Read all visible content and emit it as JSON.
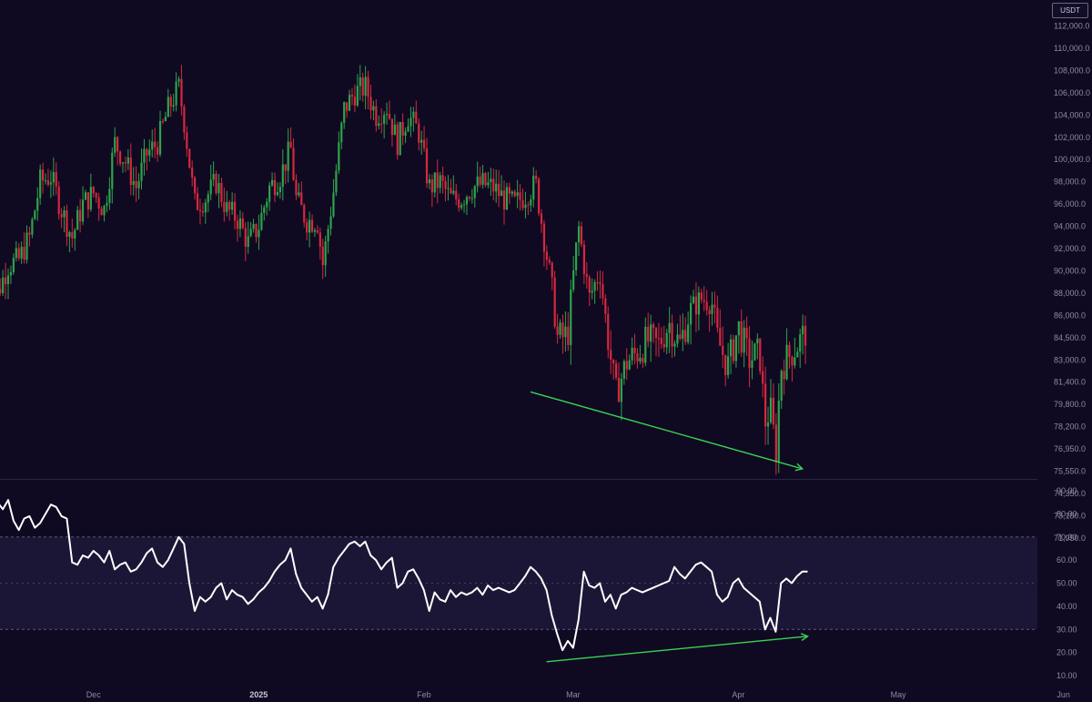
{
  "currency_badge": "USDT",
  "colors": {
    "background": "#0f0a22",
    "bullish": "#2ea34a",
    "bearish": "#d6283e",
    "rsi_line": "#ffffff",
    "rsi_band": "#1c1636",
    "trendline": "#39d353",
    "axis_text": "#8e8aa3"
  },
  "chart_data": [
    {
      "type": "candlestick",
      "title": "",
      "price_axis_labels": [
        "112,000.0",
        "110,000.0",
        "108,000.0",
        "106,000.0",
        "104,000.0",
        "102,000.0",
        "100,000.0",
        "98,000.0",
        "96,000.0",
        "94,000.0",
        "92,000.0",
        "90,000.0",
        "88,000.0",
        "86,000.0",
        "84,500.0",
        "83,000.0",
        "81,400.0",
        "79,800.0",
        "78,200.0",
        "76,950.0",
        "75,550.0",
        "74,350.0",
        "73,150.0",
        "71,950.0"
      ],
      "date_axis_labels": [
        {
          "label": "Dec",
          "bold": false
        },
        {
          "label": "2025",
          "bold": true
        },
        {
          "label": "Feb",
          "bold": false
        },
        {
          "label": "Mar",
          "bold": false
        },
        {
          "label": "Apr",
          "bold": false
        },
        {
          "label": "May",
          "bold": false
        },
        {
          "label": "Jun",
          "bold": false
        }
      ],
      "close_path": [
        [
          "2024-11-11",
          82000
        ],
        [
          "2024-11-13",
          88000
        ],
        [
          "2024-11-15",
          90500
        ],
        [
          "2024-11-17",
          91000
        ],
        [
          "2024-11-19",
          93000
        ],
        [
          "2024-11-21",
          98000
        ],
        [
          "2024-11-23",
          98500
        ],
        [
          "2024-11-25",
          95500
        ],
        [
          "2024-11-27",
          93000
        ],
        [
          "2024-11-29",
          96000
        ],
        [
          "2024-12-01",
          97000
        ],
        [
          "2024-12-03",
          95500
        ],
        [
          "2024-12-05",
          101500
        ],
        [
          "2024-12-07",
          99800
        ],
        [
          "2024-12-09",
          97500
        ],
        [
          "2024-12-11",
          100500
        ],
        [
          "2024-12-13",
          101500
        ],
        [
          "2024-12-15",
          104500
        ],
        [
          "2024-12-17",
          106500
        ],
        [
          "2024-12-18",
          103500
        ],
        [
          "2024-12-20",
          96000
        ],
        [
          "2024-12-22",
          96500
        ],
        [
          "2024-12-24",
          98000
        ],
        [
          "2024-12-26",
          95500
        ],
        [
          "2024-12-28",
          94700
        ],
        [
          "2024-12-30",
          92500
        ],
        [
          "2025-01-01",
          94000
        ],
        [
          "2025-01-03",
          97500
        ],
        [
          "2025-01-05",
          98500
        ],
        [
          "2025-01-07",
          101000
        ],
        [
          "2025-01-08",
          96500
        ],
        [
          "2025-01-10",
          94500
        ],
        [
          "2025-01-12",
          94500
        ],
        [
          "2025-01-13",
          90500
        ],
        [
          "2025-01-15",
          97000
        ],
        [
          "2025-01-17",
          104500
        ],
        [
          "2025-01-19",
          106000
        ],
        [
          "2025-01-21",
          106500
        ],
        [
          "2025-01-23",
          104000
        ],
        [
          "2025-01-25",
          104800
        ],
        [
          "2025-01-27",
          101500
        ],
        [
          "2025-01-29",
          104000
        ],
        [
          "2025-01-31",
          102500
        ],
        [
          "2025-02-02",
          97500
        ],
        [
          "2025-02-04",
          98000
        ],
        [
          "2025-02-06",
          96500
        ],
        [
          "2025-02-08",
          96500
        ],
        [
          "2025-02-10",
          97500
        ],
        [
          "2025-02-12",
          97800
        ],
        [
          "2025-02-14",
          97500
        ],
        [
          "2025-02-16",
          96500
        ],
        [
          "2025-02-18",
          96000
        ],
        [
          "2025-02-20",
          96800
        ],
        [
          "2025-02-22",
          97800
        ],
        [
          "2025-02-24",
          91500
        ],
        [
          "2025-02-25",
          88500
        ],
        [
          "2025-02-26",
          84500
        ],
        [
          "2025-02-27",
          84500
        ],
        [
          "2025-02-28",
          84700
        ],
        [
          "2025-03-02",
          94000
        ],
        [
          "2025-03-04",
          87500
        ],
        [
          "2025-03-06",
          90000
        ],
        [
          "2025-03-07",
          86000
        ],
        [
          "2025-03-09",
          80500
        ],
        [
          "2025-03-11",
          82800
        ],
        [
          "2025-03-13",
          83500
        ],
        [
          "2025-03-15",
          84300
        ],
        [
          "2025-03-17",
          84000
        ],
        [
          "2025-03-19",
          85500
        ],
        [
          "2025-03-21",
          84000
        ],
        [
          "2025-03-23",
          86500
        ],
        [
          "2025-03-25",
          87500
        ],
        [
          "2025-03-27",
          87200
        ],
        [
          "2025-03-28",
          84500
        ],
        [
          "2025-03-30",
          82500
        ],
        [
          "2025-04-01",
          85200
        ],
        [
          "2025-04-03",
          83000
        ],
        [
          "2025-04-05",
          83500
        ],
        [
          "2025-04-06",
          78500
        ],
        [
          "2025-04-07",
          79500
        ],
        [
          "2025-04-08",
          76500
        ],
        [
          "2025-04-09",
          82500
        ],
        [
          "2025-04-11",
          83500
        ],
        [
          "2025-04-13",
          84500
        ],
        [
          "2025-04-14",
          85200
        ]
      ],
      "price_trendline": [
        [
          "2025-02-21",
          80700
        ],
        [
          "2025-04-13",
          75700
        ]
      ]
    },
    {
      "type": "line",
      "indicator": "oscillator",
      "y_axis_labels": [
        "90.00",
        "80.00",
        "70.00",
        "60.00",
        "50.00",
        "40.00",
        "30.00",
        "20.00",
        "10.00"
      ],
      "ylim": [
        5,
        95
      ],
      "band": [
        30,
        70
      ],
      "reference_lines": [
        30,
        50,
        70
      ],
      "points": [
        [
          "2024-11-11",
          88
        ],
        [
          "2024-11-12",
          87
        ],
        [
          "2024-11-13",
          85
        ],
        [
          "2024-11-14",
          82
        ],
        [
          "2024-11-15",
          86
        ],
        [
          "2024-11-16",
          77
        ],
        [
          "2024-11-17",
          73
        ],
        [
          "2024-11-18",
          78
        ],
        [
          "2024-11-19",
          79
        ],
        [
          "2024-11-20",
          74
        ],
        [
          "2024-11-21",
          76
        ],
        [
          "2024-11-22",
          80
        ],
        [
          "2024-11-23",
          84
        ],
        [
          "2024-11-24",
          83
        ],
        [
          "2024-11-25",
          79
        ],
        [
          "2024-11-26",
          78
        ],
        [
          "2024-11-27",
          59
        ],
        [
          "2024-11-28",
          58
        ],
        [
          "2024-11-29",
          62
        ],
        [
          "2024-11-30",
          61
        ],
        [
          "2024-12-01",
          64
        ],
        [
          "2024-12-02",
          62
        ],
        [
          "2024-12-03",
          59
        ],
        [
          "2024-12-04",
          64
        ],
        [
          "2024-12-05",
          56
        ],
        [
          "2024-12-06",
          58
        ],
        [
          "2024-12-07",
          59
        ],
        [
          "2024-12-08",
          55
        ],
        [
          "2024-12-09",
          56
        ],
        [
          "2024-12-10",
          59
        ],
        [
          "2024-12-11",
          63
        ],
        [
          "2024-12-12",
          65
        ],
        [
          "2024-12-13",
          59
        ],
        [
          "2024-12-14",
          57
        ],
        [
          "2024-12-15",
          60
        ],
        [
          "2024-12-16",
          65
        ],
        [
          "2024-12-17",
          70
        ],
        [
          "2024-12-18",
          67
        ],
        [
          "2024-12-19",
          50
        ],
        [
          "2024-12-20",
          38
        ],
        [
          "2024-12-21",
          44
        ],
        [
          "2024-12-22",
          42
        ],
        [
          "2024-12-23",
          44
        ],
        [
          "2024-12-24",
          48
        ],
        [
          "2024-12-25",
          50
        ],
        [
          "2024-12-26",
          43
        ],
        [
          "2024-12-27",
          47
        ],
        [
          "2024-12-28",
          45
        ],
        [
          "2024-12-29",
          44
        ],
        [
          "2024-12-30",
          41
        ],
        [
          "2024-12-31",
          43
        ],
        [
          "2025-01-01",
          46
        ],
        [
          "2025-01-02",
          48
        ],
        [
          "2025-01-03",
          51
        ],
        [
          "2025-01-04",
          55
        ],
        [
          "2025-01-05",
          58
        ],
        [
          "2025-01-06",
          60
        ],
        [
          "2025-01-07",
          65
        ],
        [
          "2025-01-08",
          54
        ],
        [
          "2025-01-09",
          48
        ],
        [
          "2025-01-10",
          45
        ],
        [
          "2025-01-11",
          42
        ],
        [
          "2025-01-12",
          44
        ],
        [
          "2025-01-13",
          39
        ],
        [
          "2025-01-14",
          45
        ],
        [
          "2025-01-15",
          57
        ],
        [
          "2025-01-16",
          61
        ],
        [
          "2025-01-17",
          64
        ],
        [
          "2025-01-18",
          67
        ],
        [
          "2025-01-19",
          68
        ],
        [
          "2025-01-20",
          66
        ],
        [
          "2025-01-21",
          68
        ],
        [
          "2025-01-22",
          62
        ],
        [
          "2025-01-23",
          60
        ],
        [
          "2025-01-24",
          56
        ],
        [
          "2025-01-25",
          59
        ],
        [
          "2025-01-26",
          61
        ],
        [
          "2025-01-27",
          48
        ],
        [
          "2025-01-28",
          50
        ],
        [
          "2025-01-29",
          55
        ],
        [
          "2025-01-30",
          56
        ],
        [
          "2025-01-31",
          52
        ],
        [
          "2025-02-01",
          47
        ],
        [
          "2025-02-02",
          38
        ],
        [
          "2025-02-03",
          46
        ],
        [
          "2025-02-04",
          43
        ],
        [
          "2025-02-05",
          42
        ],
        [
          "2025-02-06",
          47
        ],
        [
          "2025-02-07",
          44
        ],
        [
          "2025-02-08",
          46
        ],
        [
          "2025-02-09",
          45
        ],
        [
          "2025-02-10",
          46
        ],
        [
          "2025-02-11",
          48
        ],
        [
          "2025-02-12",
          45
        ],
        [
          "2025-02-13",
          49
        ],
        [
          "2025-02-14",
          47
        ],
        [
          "2025-02-15",
          48
        ],
        [
          "2025-02-16",
          47
        ],
        [
          "2025-02-17",
          46
        ],
        [
          "2025-02-18",
          47
        ],
        [
          "2025-02-19",
          50
        ],
        [
          "2025-02-20",
          53
        ],
        [
          "2025-02-21",
          57
        ],
        [
          "2025-02-22",
          55
        ],
        [
          "2025-02-23",
          52
        ],
        [
          "2025-02-24",
          47
        ],
        [
          "2025-02-25",
          36
        ],
        [
          "2025-02-26",
          28
        ],
        [
          "2025-02-27",
          21
        ],
        [
          "2025-02-28",
          25
        ],
        [
          "2025-03-01",
          22
        ],
        [
          "2025-03-02",
          34
        ],
        [
          "2025-03-03",
          55
        ],
        [
          "2025-03-04",
          49
        ],
        [
          "2025-03-05",
          48
        ],
        [
          "2025-03-06",
          50
        ],
        [
          "2025-03-07",
          42
        ],
        [
          "2025-03-08",
          45
        ],
        [
          "2025-03-09",
          39
        ],
        [
          "2025-03-10",
          45
        ],
        [
          "2025-03-11",
          46
        ],
        [
          "2025-03-12",
          48
        ],
        [
          "2025-03-13",
          47
        ],
        [
          "2025-03-14",
          46
        ],
        [
          "2025-03-15",
          47
        ],
        [
          "2025-03-16",
          48
        ],
        [
          "2025-03-17",
          49
        ],
        [
          "2025-03-18",
          50
        ],
        [
          "2025-03-19",
          51
        ],
        [
          "2025-03-20",
          57
        ],
        [
          "2025-03-21",
          54
        ],
        [
          "2025-03-22",
          52
        ],
        [
          "2025-03-23",
          55
        ],
        [
          "2025-03-24",
          58
        ],
        [
          "2025-03-25",
          59
        ],
        [
          "2025-03-26",
          57
        ],
        [
          "2025-03-27",
          55
        ],
        [
          "2025-03-28",
          45
        ],
        [
          "2025-03-29",
          42
        ],
        [
          "2025-03-30",
          44
        ],
        [
          "2025-03-31",
          50
        ],
        [
          "2025-04-01",
          52
        ],
        [
          "2025-04-02",
          48
        ],
        [
          "2025-04-03",
          46
        ],
        [
          "2025-04-04",
          44
        ],
        [
          "2025-04-05",
          42
        ],
        [
          "2025-04-06",
          30
        ],
        [
          "2025-04-07",
          35
        ],
        [
          "2025-04-08",
          29
        ],
        [
          "2025-04-09",
          50
        ],
        [
          "2025-04-10",
          52
        ],
        [
          "2025-04-11",
          50
        ],
        [
          "2025-04-12",
          53
        ],
        [
          "2025-04-13",
          55
        ],
        [
          "2025-04-14",
          55
        ]
      ],
      "rsi_trendline": [
        [
          "2025-02-24",
          16
        ],
        [
          "2025-04-14",
          27
        ]
      ]
    }
  ]
}
